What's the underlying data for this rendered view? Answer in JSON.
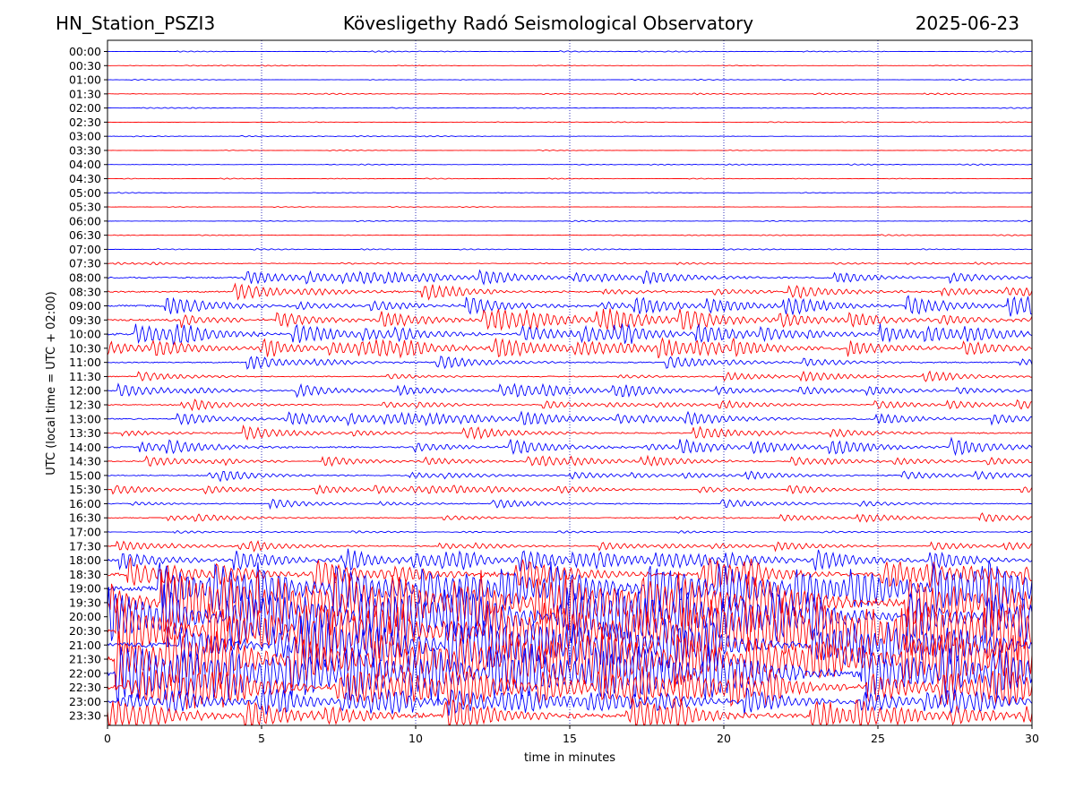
{
  "header": {
    "station": "HN_Station_PSZI3",
    "observatory": "Kövesligethy Radó Seismological Observatory",
    "date": "2025-06-23"
  },
  "colors": {
    "blue": "#0000ff",
    "red": "#ff0000",
    "axis": "#000000",
    "grid": "#0000aa"
  },
  "chart_data": {
    "type": "line",
    "title": "Kövesligethy Radó Seismological Observatory",
    "xlabel": "time in minutes",
    "ylabel": "UTC (local time = UTC + 02:00)",
    "xlim": [
      0,
      30
    ],
    "x_ticks": [
      "0",
      "5",
      "10",
      "15",
      "20",
      "25",
      "30"
    ],
    "grid": "vertical dotted lines at 5, 10, 15, 20, 25",
    "row_colors": [
      "blue",
      "red"
    ],
    "rows": [
      {
        "label": "00:00",
        "activity": 0.03
      },
      {
        "label": "00:30",
        "activity": 0.02
      },
      {
        "label": "01:00",
        "activity": 0.02
      },
      {
        "label": "01:30",
        "activity": 0.04
      },
      {
        "label": "02:00",
        "activity": 0.02
      },
      {
        "label": "02:30",
        "activity": 0.02
      },
      {
        "label": "03:00",
        "activity": 0.03
      },
      {
        "label": "03:30",
        "activity": 0.02
      },
      {
        "label": "04:00",
        "activity": 0.03
      },
      {
        "label": "04:30",
        "activity": 0.02
      },
      {
        "label": "05:00",
        "activity": 0.02
      },
      {
        "label": "05:30",
        "activity": 0.02
      },
      {
        "label": "06:00",
        "activity": 0.04
      },
      {
        "label": "06:30",
        "activity": 0.03
      },
      {
        "label": "07:00",
        "activity": 0.04
      },
      {
        "label": "07:30",
        "activity": 0.08
      },
      {
        "label": "08:00",
        "activity": 0.2
      },
      {
        "label": "08:30",
        "activity": 0.25
      },
      {
        "label": "09:00",
        "activity": 0.3
      },
      {
        "label": "09:30",
        "activity": 0.35
      },
      {
        "label": "10:00",
        "activity": 0.35
      },
      {
        "label": "10:30",
        "activity": 0.3
      },
      {
        "label": "11:00",
        "activity": 0.2
      },
      {
        "label": "11:30",
        "activity": 0.15
      },
      {
        "label": "12:00",
        "activity": 0.2
      },
      {
        "label": "12:30",
        "activity": 0.15
      },
      {
        "label": "13:00",
        "activity": 0.2
      },
      {
        "label": "13:30",
        "activity": 0.2
      },
      {
        "label": "14:00",
        "activity": 0.25
      },
      {
        "label": "14:30",
        "activity": 0.15
      },
      {
        "label": "15:00",
        "activity": 0.15
      },
      {
        "label": "15:30",
        "activity": 0.12
      },
      {
        "label": "16:00",
        "activity": 0.12
      },
      {
        "label": "16:30",
        "activity": 0.12
      },
      {
        "label": "17:00",
        "activity": 0.08
      },
      {
        "label": "17:30",
        "activity": 0.15
      },
      {
        "label": "18:00",
        "activity": 0.35
      },
      {
        "label": "18:30",
        "activity": 0.55
      },
      {
        "label": "19:00",
        "activity": 0.9
      },
      {
        "label": "19:30",
        "activity": 1.0
      },
      {
        "label": "20:00",
        "activity": 1.0
      },
      {
        "label": "20:30",
        "activity": 1.0
      },
      {
        "label": "21:00",
        "activity": 0.9
      },
      {
        "label": "21:30",
        "activity": 1.0
      },
      {
        "label": "22:00",
        "activity": 1.0
      },
      {
        "label": "22:30",
        "activity": 0.7
      },
      {
        "label": "23:00",
        "activity": 0.45
      },
      {
        "label": "23:30",
        "activity": 0.6
      }
    ]
  }
}
